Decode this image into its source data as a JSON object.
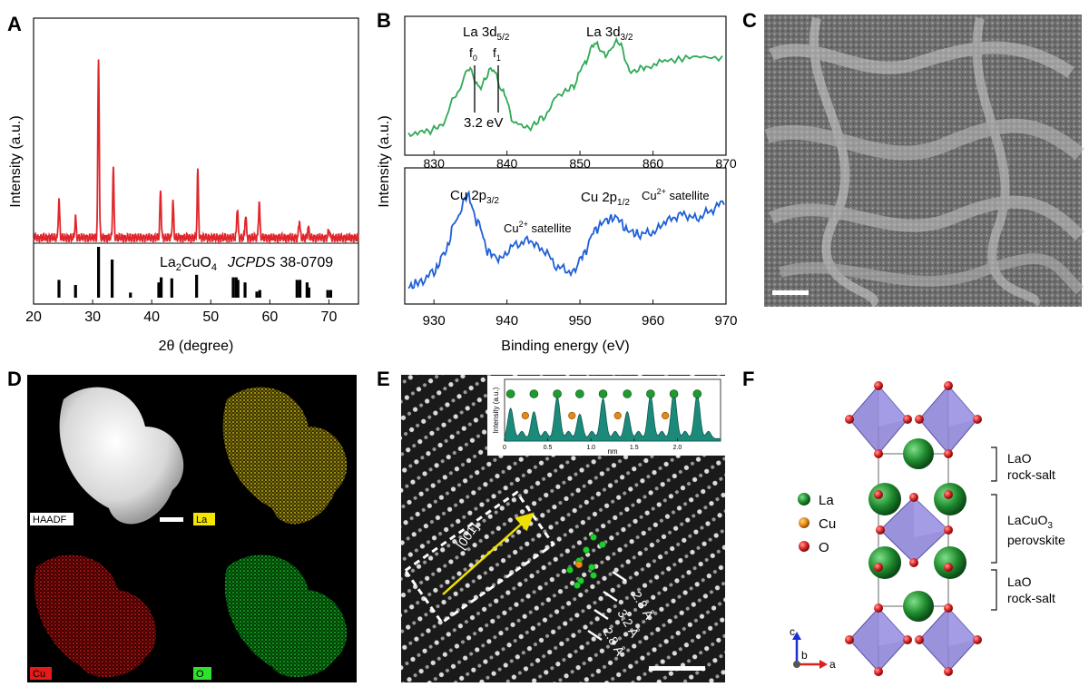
{
  "panels": {
    "A": {
      "label": "A",
      "xlabel_prefix": "2",
      "xlabel_theta": "θ",
      "xlabel_suffix": " (degree)",
      "ylabel": "Intensity (a.u.)",
      "ref_formula_parts": [
        "La",
        "2",
        "CuO",
        "4"
      ],
      "ref_jcpds": "JCPDS",
      "ref_number": "38-0709",
      "colors": {
        "xrd": "#e0262b",
        "ref": "#000000"
      }
    },
    "B": {
      "label": "B",
      "ylabel": "Intensity (a.u.)",
      "xlabel": "Binding energy (eV)",
      "top": {
        "la52_main": "La 3d",
        "la52_sub": "5/2",
        "la32_main": "La 3d",
        "la32_sub": "3/2",
        "f0_main": "f",
        "f0_sub": "0",
        "f1_main": "f",
        "f1_sub": "1",
        "split": "3.2 eV",
        "color": "#2eaa55"
      },
      "bottom": {
        "cu32_main": "Cu 2p",
        "cu32_sub": "3/2",
        "cu12_main": "Cu 2p",
        "cu12_sub": "1/2",
        "sat1_a": "Cu",
        "sat1_sup": "2+",
        "sat1_b": " satellite",
        "sat2_a": "Cu",
        "sat2_sup": "2+",
        "sat2_b": " satellite",
        "color": "#1f5fd6"
      }
    },
    "C": {
      "label": "C"
    },
    "D": {
      "label": "D",
      "tags": [
        "HAADF",
        "La",
        "Cu",
        "O"
      ]
    },
    "E": {
      "label": "E",
      "direction": "[001]",
      "spacings": [
        "2.8 Å",
        "3.2 Å",
        "2.8 Å"
      ],
      "inset_ylabel": "Intensity (a.u.)",
      "inset_xlabel": "nm",
      "inset_color": "#1b8a7a"
    },
    "F": {
      "label": "F",
      "legend": [
        "La",
        "Cu",
        "O"
      ],
      "legend_colors": {
        "La": "#1f8a2e",
        "Cu": "#e38a16",
        "O": "#d92121"
      },
      "layer1_a": "LaO",
      "layer1_b": "rock-salt",
      "layer2_a": "LaCuO",
      "layer2_sub": "3",
      "layer2_b": "perovskite",
      "layer3_a": "LaO",
      "layer3_b": "rock-salt",
      "axes": [
        "c",
        "b",
        "a"
      ]
    }
  },
  "chart_data": [
    {
      "type": "line",
      "panel": "A",
      "xlabel": "2θ (degree)",
      "ylabel": "Intensity (a.u.)",
      "xlim": [
        20,
        75
      ],
      "xticks": [
        20,
        30,
        40,
        50,
        60,
        70
      ],
      "series": [
        {
          "peaks": [
            [
              24.3,
              0.21
            ],
            [
              27.1,
              0.11
            ],
            [
              31.0,
              1.0
            ],
            [
              33.5,
              0.38
            ],
            [
              41.5,
              0.26
            ],
            [
              43.6,
              0.2
            ],
            [
              47.8,
              0.36
            ],
            [
              54.5,
              0.17
            ],
            [
              55.9,
              0.13
            ],
            [
              58.2,
              0.2
            ],
            [
              65.0,
              0.1
            ],
            [
              66.5,
              0.06
            ],
            [
              70.0,
              0.05
            ]
          ]
        },
        {
          "name": "La2CuO4 JCPDS 38-0709",
          "sticks": [
            [
              24.3,
              0.35
            ],
            [
              27.1,
              0.25
            ],
            [
              31.0,
              1.0
            ],
            [
              33.3,
              0.75
            ],
            [
              36.4,
              0.1
            ],
            [
              41.2,
              0.3
            ],
            [
              41.6,
              0.4
            ],
            [
              43.4,
              0.38
            ],
            [
              47.6,
              0.45
            ],
            [
              53.8,
              0.4
            ],
            [
              54.3,
              0.4
            ],
            [
              54.6,
              0.35
            ],
            [
              55.8,
              0.3
            ],
            [
              57.8,
              0.12
            ],
            [
              58.3,
              0.15
            ],
            [
              64.6,
              0.35
            ],
            [
              65.1,
              0.35
            ],
            [
              66.3,
              0.3
            ],
            [
              66.6,
              0.2
            ],
            [
              69.8,
              0.15
            ],
            [
              70.3,
              0.15
            ]
          ]
        }
      ]
    },
    {
      "type": "line",
      "panel": "B-top",
      "xlim": [
        826,
        870
      ],
      "xticks": [
        830,
        840,
        850,
        860,
        870
      ],
      "series": [
        {
          "name": "La 3d",
          "x": [
            826.5,
            829,
            831,
            833,
            834.8,
            836.2,
            838,
            839.5,
            841,
            843,
            845,
            847,
            849,
            850.5,
            852,
            853.5,
            855.2,
            857,
            859,
            862,
            866,
            870
          ],
          "y": [
            0.04,
            0.06,
            0.12,
            0.42,
            0.68,
            0.5,
            0.68,
            0.45,
            0.15,
            0.1,
            0.2,
            0.42,
            0.5,
            0.72,
            0.93,
            0.82,
            0.95,
            0.65,
            0.7,
            0.76,
            0.8,
            0.78
          ]
        }
      ]
    },
    {
      "type": "line",
      "panel": "B-bottom",
      "xlabel": "Binding energy (eV)",
      "xlim": [
        926,
        970
      ],
      "xticks": [
        930,
        940,
        950,
        960,
        970
      ],
      "series": [
        {
          "name": "Cu 2p",
          "x": [
            926.5,
            928,
            930,
            931.5,
            933,
            934.6,
            936,
            937.5,
            939,
            941,
            943,
            945,
            947,
            949,
            950.5,
            952,
            953.5,
            955,
            956.5,
            958,
            960,
            962,
            964,
            966,
            968,
            970
          ],
          "y": [
            0.05,
            0.1,
            0.2,
            0.4,
            0.72,
            0.97,
            0.7,
            0.4,
            0.33,
            0.47,
            0.52,
            0.42,
            0.25,
            0.2,
            0.38,
            0.62,
            0.72,
            0.75,
            0.62,
            0.58,
            0.6,
            0.72,
            0.78,
            0.74,
            0.82,
            0.93
          ]
        }
      ]
    },
    {
      "type": "area",
      "panel": "E-inset",
      "xlabel": "nm",
      "ylabel": "Intensity (a.u.)",
      "xlim": [
        0,
        2.5
      ],
      "xticks": [
        0,
        0.5,
        1.0,
        1.5,
        2.0
      ],
      "series": [
        {
          "peaks_x": [
            0.07,
            0.34,
            0.61,
            0.87,
            1.14,
            1.42,
            1.69,
            1.96,
            2.23
          ],
          "peaks_y": [
            0.62,
            0.55,
            0.85,
            0.5,
            0.82,
            0.55,
            0.88,
            0.95,
            0.9
          ]
        }
      ]
    }
  ]
}
